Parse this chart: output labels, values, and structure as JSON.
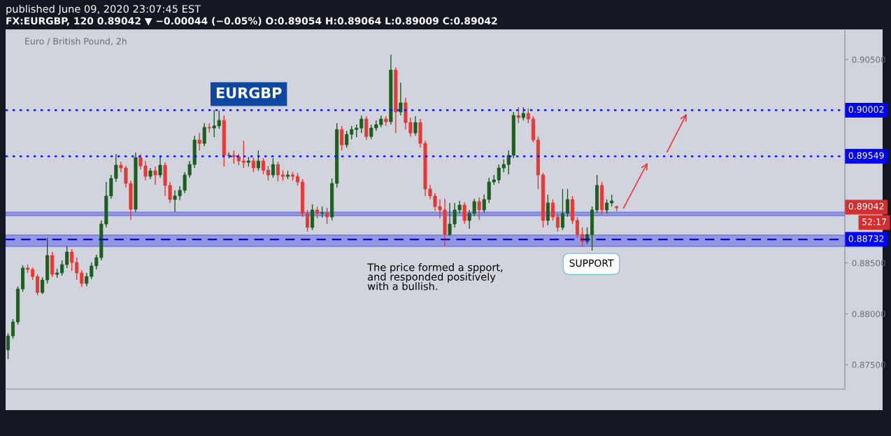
{
  "chart_data": {
    "type": "candlestick",
    "title": "published June 09, 2020 23:07:45 EST",
    "subtitle": "FX:EURGBP, 120 0.89042 ▼ −0.00044 (−0.05%) O:0.89054 H:0.89064 L:0.89009 C:0.89042",
    "categories": [
      null,
      null,
      null,
      null,
      null,
      null,
      null,
      null,
      null,
      null,
      null,
      null,
      null,
      null,
      null,
      null,
      null,
      null,
      null,
      null,
      null,
      null,
      null,
      null,
      null,
      null,
      null,
      null,
      null,
      null,
      null,
      null,
      null,
      null,
      null,
      null,
      null,
      null,
      null,
      null,
      null,
      null,
      null,
      null,
      null,
      null,
      null,
      null,
      null,
      null,
      null,
      null,
      null,
      null,
      null,
      null,
      null,
      null,
      null,
      null,
      null,
      null,
      null,
      null,
      null,
      null,
      null,
      null,
      null,
      null,
      null,
      null,
      null,
      null,
      null,
      null,
      null,
      null,
      null,
      null,
      null,
      null,
      null,
      null,
      null,
      null,
      null,
      null,
      null,
      null,
      null,
      null,
      null,
      null,
      null,
      null,
      null,
      null,
      null,
      null,
      null,
      null,
      null,
      null,
      null,
      null,
      null,
      null,
      null,
      null,
      null,
      null,
      null,
      null,
      null,
      null,
      null,
      null,
      null,
      null,
      null,
      null,
      null,
      null,
      null,
      null,
      null,
      null,
      null,
      null,
      null,
      null,
      null,
      null,
      null,
      null,
      null,
      null,
      null,
      null,
      null,
      null,
      null,
      null,
      null,
      null,
      null,
      null,
      null,
      null,
      null,
      null,
      null,
      null,
      null,
      null,
      null,
      null,
      null,
      null,
      null,
      null,
      null,
      null,
      null,
      null,
      null,
      null,
      null,
      null,
      null
    ],
    "ohlc": [
      [
        0.87645,
        0.8781,
        0.87556,
        0.87783
      ],
      [
        0.87783,
        0.87948,
        0.87755,
        0.8792
      ],
      [
        0.8792,
        0.88271,
        0.87893,
        0.88244
      ],
      [
        0.88244,
        0.88478,
        0.88216,
        0.8845
      ],
      [
        0.8845,
        0.88484,
        0.88402,
        0.88436
      ],
      [
        0.88436,
        0.88457,
        0.88333,
        0.88367
      ],
      [
        0.88367,
        0.88388,
        0.88182,
        0.88209
      ],
      [
        0.88209,
        0.88361,
        0.88195,
        0.88333
      ],
      [
        0.88333,
        0.88746,
        0.88299,
        0.88574
      ],
      [
        0.88574,
        0.88608,
        0.88361,
        0.88388
      ],
      [
        0.88388,
        0.88443,
        0.88354,
        0.88402
      ],
      [
        0.88402,
        0.88526,
        0.88374,
        0.88484
      ],
      [
        0.88484,
        0.88663,
        0.8845,
        0.88608
      ],
      [
        0.88608,
        0.88636,
        0.88422,
        0.88505
      ],
      [
        0.88505,
        0.88553,
        0.88333,
        0.88402
      ],
      [
        0.88402,
        0.88429,
        0.88264,
        0.88299
      ],
      [
        0.88299,
        0.88402,
        0.88271,
        0.88367
      ],
      [
        0.88367,
        0.88505,
        0.8834,
        0.88471
      ],
      [
        0.88471,
        0.88581,
        0.88436,
        0.88553
      ],
      [
        0.88553,
        0.88918,
        0.88526,
        0.88883
      ],
      [
        0.88883,
        0.89296,
        0.88849,
        0.89159
      ],
      [
        0.89159,
        0.89365,
        0.89131,
        0.89331
      ],
      [
        0.89331,
        0.89571,
        0.89296,
        0.89461
      ],
      [
        0.89461,
        0.89496,
        0.89393,
        0.89434
      ],
      [
        0.89434,
        0.89454,
        0.89241,
        0.89282
      ],
      [
        0.89282,
        0.8931,
        0.88925,
        0.89028
      ],
      [
        0.89028,
        0.89585,
        0.89,
        0.89537
      ],
      [
        0.89537,
        0.89571,
        0.8942,
        0.89454
      ],
      [
        0.89454,
        0.89503,
        0.8931,
        0.89351
      ],
      [
        0.89351,
        0.89434,
        0.89324,
        0.89406
      ],
      [
        0.89406,
        0.89448,
        0.89269,
        0.89365
      ],
      [
        0.89365,
        0.89544,
        0.89338,
        0.89461
      ],
      [
        0.89461,
        0.89489,
        0.89159,
        0.89262
      ],
      [
        0.89262,
        0.89296,
        0.8909,
        0.89124
      ],
      [
        0.89124,
        0.89214,
        0.89,
        0.89159
      ],
      [
        0.89159,
        0.89255,
        0.89117,
        0.89214
      ],
      [
        0.89214,
        0.89393,
        0.89186,
        0.89365
      ],
      [
        0.89365,
        0.89503,
        0.89338,
        0.89468
      ],
      [
        0.89468,
        0.8975,
        0.89434,
        0.89709
      ],
      [
        0.89709,
        0.89778,
        0.89606,
        0.89675
      ],
      [
        0.89675,
        0.89874,
        0.89647,
        0.89833
      ],
      [
        0.89833,
        0.89874,
        0.89785,
        0.89826
      ],
      [
        0.89826,
        0.90005,
        0.89737,
        0.89847
      ],
      [
        0.89847,
        0.89998,
        0.89819,
        0.89902
      ],
      [
        0.89902,
        0.8995,
        0.89448,
        0.89558
      ],
      [
        0.89558,
        0.89585,
        0.8953,
        0.89558
      ],
      [
        0.89558,
        0.89606,
        0.89475,
        0.89544
      ],
      [
        0.89544,
        0.89571,
        0.89461,
        0.89503
      ],
      [
        0.89503,
        0.89702,
        0.89434,
        0.89489
      ],
      [
        0.89489,
        0.89544,
        0.89448,
        0.89503
      ],
      [
        0.89503,
        0.89537,
        0.89393,
        0.89434
      ],
      [
        0.89434,
        0.89606,
        0.89406,
        0.89503
      ],
      [
        0.89503,
        0.8953,
        0.89372,
        0.89413
      ],
      [
        0.89413,
        0.89454,
        0.8931,
        0.89365
      ],
      [
        0.89365,
        0.8953,
        0.89338,
        0.89468
      ],
      [
        0.89468,
        0.89496,
        0.89303,
        0.89365
      ],
      [
        0.89365,
        0.89413,
        0.8931,
        0.89351
      ],
      [
        0.89351,
        0.89406,
        0.89324,
        0.89365
      ],
      [
        0.89365,
        0.89393,
        0.8931,
        0.89351
      ],
      [
        0.89351,
        0.89386,
        0.89262,
        0.89296
      ],
      [
        0.89296,
        0.89324,
        0.88952,
        0.88987
      ],
      [
        0.88987,
        0.89021,
        0.88808,
        0.88849
      ],
      [
        0.88849,
        0.89076,
        0.88822,
        0.89021
      ],
      [
        0.89021,
        0.89055,
        0.88938,
        0.88987
      ],
      [
        0.88987,
        0.89055,
        0.88945,
        0.88994
      ],
      [
        0.88994,
        0.89042,
        0.88883,
        0.88952
      ],
      [
        0.88952,
        0.89331,
        0.88918,
        0.89282
      ],
      [
        0.89282,
        0.89874,
        0.89241,
        0.89812
      ],
      [
        0.89812,
        0.89847,
        0.89606,
        0.89661
      ],
      [
        0.89661,
        0.89798,
        0.89633,
        0.89764
      ],
      [
        0.89764,
        0.89847,
        0.89716,
        0.89812
      ],
      [
        0.89812,
        0.8986,
        0.89737,
        0.89826
      ],
      [
        0.89826,
        0.8995,
        0.89778,
        0.89915
      ],
      [
        0.89915,
        0.89943,
        0.89709,
        0.89743
      ],
      [
        0.89743,
        0.8986,
        0.89716,
        0.89826
      ],
      [
        0.89826,
        0.89902,
        0.89798,
        0.8986
      ],
      [
        0.8986,
        0.8995,
        0.89833,
        0.89915
      ],
      [
        0.89915,
        0.89943,
        0.89847,
        0.89888
      ],
      [
        0.89888,
        0.90548,
        0.8986,
        0.90397
      ],
      [
        0.90397,
        0.90425,
        0.89778,
        0.89984
      ],
      [
        0.89984,
        0.90273,
        0.8995,
        0.90074
      ],
      [
        0.90074,
        0.90122,
        0.89812,
        0.89881
      ],
      [
        0.89881,
        0.89929,
        0.89743,
        0.89778
      ],
      [
        0.89778,
        0.89943,
        0.8975,
        0.89881
      ],
      [
        0.89881,
        0.89915,
        0.89633,
        0.89675
      ],
      [
        0.89675,
        0.89702,
        0.89159,
        0.89227
      ],
      [
        0.89227,
        0.89269,
        0.89124,
        0.89159
      ],
      [
        0.89159,
        0.89186,
        0.89014,
        0.89055
      ],
      [
        0.89055,
        0.89124,
        0.88938,
        0.89021
      ],
      [
        0.89021,
        0.89131,
        0.88663,
        0.8878
      ],
      [
        0.8878,
        0.8909,
        0.88766,
        0.88883
      ],
      [
        0.88883,
        0.8909,
        0.88849,
        0.89021
      ],
      [
        0.89021,
        0.8911,
        0.88987,
        0.89069
      ],
      [
        0.89069,
        0.89097,
        0.88883,
        0.88918
      ],
      [
        0.88918,
        0.89021,
        0.88835,
        0.88987
      ],
      [
        0.88987,
        0.89131,
        0.88959,
        0.89104
      ],
      [
        0.89104,
        0.89145,
        0.88925,
        0.89021
      ],
      [
        0.89021,
        0.89172,
        0.88994,
        0.89124
      ],
      [
        0.89124,
        0.89338,
        0.8909,
        0.89296
      ],
      [
        0.89296,
        0.89365,
        0.89269,
        0.89317
      ],
      [
        0.89317,
        0.89468,
        0.89282,
        0.89434
      ],
      [
        0.89434,
        0.89516,
        0.89393,
        0.89468
      ],
      [
        0.89468,
        0.89606,
        0.89372,
        0.89558
      ],
      [
        0.89558,
        0.89984,
        0.8953,
        0.8995
      ],
      [
        0.8995,
        0.90032,
        0.89874,
        0.89929
      ],
      [
        0.89929,
        0.90032,
        0.89902,
        0.8997
      ],
      [
        0.8997,
        0.90019,
        0.89874,
        0.89915
      ],
      [
        0.89915,
        0.89943,
        0.89688,
        0.89709
      ],
      [
        0.89709,
        0.89743,
        0.89227,
        0.89365
      ],
      [
        0.89365,
        0.89386,
        0.88849,
        0.88918
      ],
      [
        0.88918,
        0.89172,
        0.8887,
        0.8909
      ],
      [
        0.8909,
        0.89124,
        0.88918,
        0.88952
      ],
      [
        0.88952,
        0.88987,
        0.88808,
        0.88849
      ],
      [
        0.88849,
        0.89227,
        0.88822,
        0.88987
      ],
      [
        0.88987,
        0.89227,
        0.88952,
        0.89124
      ],
      [
        0.89124,
        0.89159,
        0.88883,
        0.88918
      ],
      [
        0.88918,
        0.88952,
        0.88746,
        0.8878
      ],
      [
        0.8878,
        0.88849,
        0.88663,
        0.88711
      ],
      [
        0.88711,
        0.88849,
        0.88684,
        0.8878
      ],
      [
        0.8878,
        0.89055,
        0.88622,
        0.89021
      ],
      [
        0.89021,
        0.89365,
        0.88994,
        0.89262
      ],
      [
        0.89262,
        0.89296,
        0.8898,
        0.89021
      ],
      [
        0.89021,
        0.89124,
        0.88987,
        0.8909
      ],
      [
        0.8909,
        0.89172,
        0.89055,
        0.8911
      ],
      [
        0.89054,
        0.89064,
        0.89009,
        0.89042
      ],
      null,
      null,
      null,
      null,
      null,
      null,
      null,
      null,
      null,
      null,
      null,
      null,
      null,
      null,
      null,
      null,
      null,
      null,
      null,
      null,
      null,
      null,
      null,
      null,
      null,
      null,
      null,
      null,
      null,
      null,
      null,
      null,
      null,
      null,
      null,
      null,
      null,
      null,
      null,
      null,
      null,
      null,
      null,
      null,
      null,
      null
    ],
    "colors": [
      "#1b5e20",
      "#1b5e20",
      "#1b5e20",
      "#1b5e20",
      "#e53935",
      "#e53935",
      "#e53935",
      "#1b5e20",
      "#1b5e20",
      "#e53935",
      "#1b5e20",
      "#1b5e20",
      "#1b5e20",
      "#e53935",
      "#e53935",
      "#e53935",
      "#1b5e20",
      "#1b5e20",
      "#1b5e20",
      "#1b5e20",
      "#1b5e20",
      "#1b5e20",
      "#1b5e20",
      "#e53935",
      "#e53935",
      "#e53935",
      "#1b5e20",
      "#e53935",
      "#e53935",
      "#1b5e20",
      "#e53935",
      "#1b5e20",
      "#e53935",
      "#e53935",
      "#1b5e20",
      "#1b5e20",
      "#1b5e20",
      "#1b5e20",
      "#1b5e20",
      "#e53935",
      "#1b5e20",
      "#e53935",
      "#1b5e20",
      "#1b5e20",
      "#e53935",
      "#1b5e20",
      "#e53935",
      "#e53935",
      "#e53935",
      "#1b5e20",
      "#e53935",
      "#1b5e20",
      "#e53935",
      "#e53935",
      "#1b5e20",
      "#e53935",
      "#e53935",
      "#1b5e20",
      "#e53935",
      "#e53935",
      "#e53935",
      "#e53935",
      "#1b5e20",
      "#e53935",
      "#1b5e20",
      "#e53935",
      "#1b5e20",
      "#1b5e20",
      "#e53935",
      "#1b5e20",
      "#1b5e20",
      "#1b5e20",
      "#1b5e20",
      "#e53935",
      "#1b5e20",
      "#1b5e20",
      "#1b5e20",
      "#e53935",
      "#1b5e20",
      "#e53935",
      "#1b5e20",
      "#e53935",
      "#e53935",
      "#1b5e20",
      "#e53935",
      "#e53935",
      "#e53935",
      "#e53935",
      "#e53935",
      "#e53935",
      "#1b5e20",
      "#1b5e20",
      "#1b5e20",
      "#e53935",
      "#1b5e20",
      "#1b5e20",
      "#e53935",
      "#1b5e20",
      "#1b5e20",
      "#1b5e20",
      "#1b5e20",
      "#1b5e20",
      "#1b5e20",
      "#1b5e20",
      "#e53935",
      "#1b5e20",
      "#e53935",
      "#e53935",
      "#e53935",
      "#e53935",
      "#1b5e20",
      "#e53935",
      "#e53935",
      "#1b5e20",
      "#1b5e20",
      "#e53935",
      "#e53935",
      "#e53935",
      "#1b5e20",
      "#1b5e20",
      "#1b5e20",
      "#e53935",
      "#1b5e20",
      "#1b5e20",
      "#e53935",
      null,
      null,
      null,
      null,
      null,
      null,
      null,
      null,
      null,
      null,
      null,
      null,
      null,
      null,
      null,
      null,
      null,
      null,
      null,
      null,
      null,
      null,
      null,
      null,
      null,
      null,
      null,
      null,
      null,
      null,
      null,
      null,
      null,
      null,
      null,
      null,
      null,
      null,
      null,
      null,
      null,
      null,
      null,
      null,
      null,
      null
    ],
    "ylim": [
      0.8726,
      0.90796
    ],
    "yticks": [
      {
        "value": 0.875,
        "label": "0.87500"
      },
      {
        "value": 0.88,
        "label": "0.88000"
      },
      {
        "value": 0.885,
        "label": "0.88500"
      },
      {
        "value": 0.905,
        "label": "0.90500"
      }
    ],
    "tick_labels": "y",
    "grid": false,
    "ref_lines": [
      {
        "axis": "y",
        "value": 0.90002,
        "label": "0.90002",
        "color": "#0000ff",
        "line_style": "dotted"
      },
      {
        "axis": "y",
        "value": 0.89549,
        "label": "0.89549",
        "color": "#0000ff",
        "line_style": "dotted"
      },
      {
        "axis": "y",
        "value": 0.88732,
        "label": "0.88732",
        "color": "#0000ff",
        "line_style": "dashed"
      }
    ],
    "bands": [
      {
        "axis": "y",
        "from": 0.88966,
        "to": 0.89,
        "color": "#7b7fe8"
      },
      {
        "axis": "y",
        "from": 0.88663,
        "to": 0.88773,
        "color": "#7b7fe8"
      }
    ],
    "annotations": [
      "Euro / British Pound, 2h",
      "EURGBP",
      "The price formed a spport,\nand responded positively\nwith a bullish.",
      "SUPPORT",
      "0.89042",
      "52:17"
    ]
  }
}
